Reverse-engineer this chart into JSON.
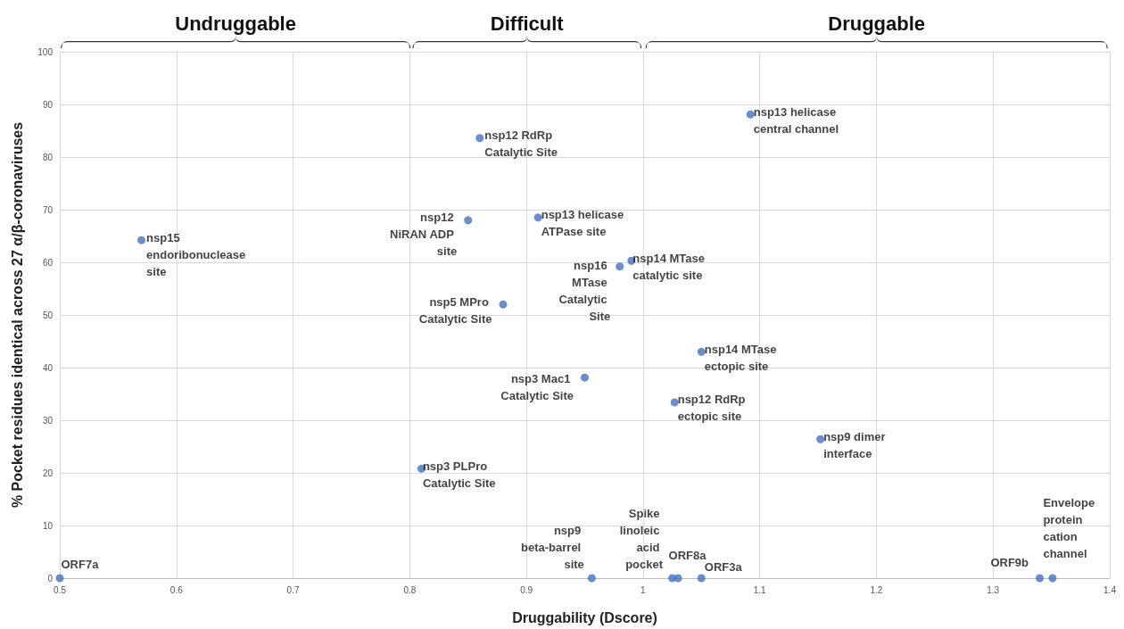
{
  "chart_data": {
    "type": "scatter",
    "xlabel": "Druggability (Dscore)",
    "ylabel": "% Pocket residues identical across 27 α/β-coronaviruses",
    "xlim": [
      0.5,
      1.4
    ],
    "xticks": [
      0.5,
      0.6,
      0.7,
      0.8,
      0.9,
      1,
      1.1,
      1.2,
      1.3,
      1.4
    ],
    "ylim": [
      0,
      100
    ],
    "yticks": [
      0,
      10,
      20,
      30,
      40,
      50,
      60,
      70,
      80,
      90,
      100
    ],
    "grid": true,
    "legend": false,
    "marker": "circle",
    "annotations": [
      "Undruggable",
      "Difficult",
      "Druggable"
    ],
    "series": [
      {
        "name": "ORF7a",
        "color": "#4472c4",
        "x": [
          0.5
        ],
        "values": [
          0
        ]
      },
      {
        "name": "nsp15 endoribonuclease site",
        "color": "#4472c4",
        "x": [
          0.57
        ],
        "values": [
          64.2
        ]
      },
      {
        "name": "nsp3 PLPro Catalytic Site",
        "color": "#4472c4",
        "x": [
          0.81
        ],
        "values": [
          20.8
        ]
      },
      {
        "name": "nsp12 NiRAN ADP site",
        "color": "#4472c4",
        "x": [
          0.85
        ],
        "values": [
          68
        ]
      },
      {
        "name": "nsp12 RdRp Catalytic Site",
        "color": "#4472c4",
        "x": [
          0.86
        ],
        "values": [
          83.6
        ]
      },
      {
        "name": "nsp5 MPro Catalytic Site",
        "color": "#4472c4",
        "x": [
          0.88
        ],
        "values": [
          52
        ]
      },
      {
        "name": "nsp13 helicase ATPase site",
        "color": "#4472c4",
        "x": [
          0.91
        ],
        "values": [
          68.5
        ]
      },
      {
        "name": "nsp3 Mac1 Catalytic Site",
        "color": "#4472c4",
        "x": [
          0.95
        ],
        "values": [
          38.1
        ]
      },
      {
        "name": "nsp9 beta-barrel site",
        "color": "#4472c4",
        "x": [
          0.956
        ],
        "values": [
          0
        ]
      },
      {
        "name": "nsp16 MTase Catalytic Site",
        "color": "#4472c4",
        "x": [
          0.98
        ],
        "values": [
          59.2
        ]
      },
      {
        "name": "nsp14 MTase catalytic site",
        "color": "#4472c4",
        "x": [
          0.99
        ],
        "values": [
          60.3
        ]
      },
      {
        "name": "Spike linoleic acid pocket",
        "color": "#4472c4",
        "x": [
          1.025
        ],
        "values": [
          0
        ]
      },
      {
        "name": "ORF8a",
        "color": "#4472c4",
        "x": [
          1.03
        ],
        "values": [
          0
        ]
      },
      {
        "name": "ORF3a",
        "color": "#4472c4",
        "x": [
          1.05
        ],
        "values": [
          0
        ]
      },
      {
        "name": "nsp14 MTase ectopic site",
        "color": "#4472c4",
        "x": [
          1.05
        ],
        "values": [
          43
        ]
      },
      {
        "name": "nsp12 RdRp ectopic site",
        "color": "#4472c4",
        "x": [
          1.027
        ],
        "values": [
          33.4
        ]
      },
      {
        "name": "nsp13 helicase central channel",
        "color": "#4472c4",
        "x": [
          1.092
        ],
        "values": [
          88.1
        ]
      },
      {
        "name": "nsp9 dimer interface",
        "color": "#4472c4",
        "x": [
          1.152
        ],
        "values": [
          26.4
        ]
      },
      {
        "name": "ORF9b",
        "color": "#4472c4",
        "x": [
          1.34
        ],
        "values": [
          0
        ]
      },
      {
        "name": "Envelope protein cation channel",
        "color": "#4472c4",
        "x": [
          1.351
        ],
        "values": [
          0
        ]
      }
    ]
  }
}
